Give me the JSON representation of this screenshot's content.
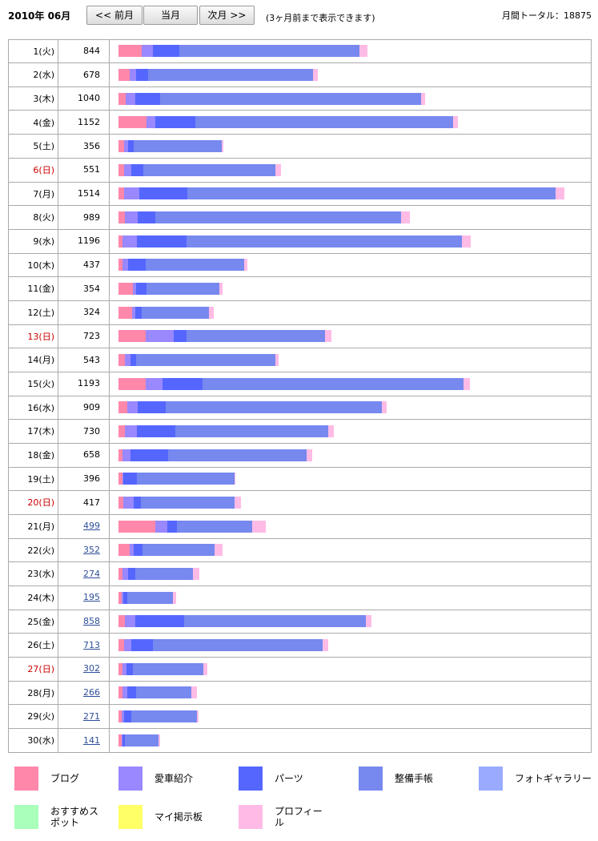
{
  "header": {
    "title": "2010年 06月",
    "buttons": [
      "<< 前月",
      "当月",
      "次月 >>"
    ],
    "note": "(3ヶ月前まで表示できます)",
    "total": "月間トータル：18875"
  },
  "chart_data": {
    "type": "bar",
    "categories": [
      "1(火)",
      "2(水)",
      "3(木)",
      "4(金)",
      "5(土)",
      "6(日)",
      "7(月)",
      "8(火)",
      "9(水)",
      "10(木)",
      "11(金)",
      "12(土)",
      "13(日)",
      "14(月)",
      "15(火)",
      "16(水)",
      "17(木)",
      "18(金)",
      "19(土)",
      "20(日)",
      "21(月)",
      "22(火)",
      "23(水)",
      "24(木)",
      "25(金)",
      "26(土)",
      "27(日)",
      "28(月)",
      "29(火)",
      "30(水)"
    ],
    "totals": [
      844,
      678,
      1040,
      1152,
      356,
      551,
      1514,
      989,
      1196,
      437,
      354,
      324,
      723,
      543,
      1193,
      909,
      730,
      658,
      396,
      417,
      499,
      352,
      274,
      195,
      858,
      713,
      302,
      266,
      271,
      141
    ],
    "series": [
      {
        "name": "ブログ",
        "color": "#ff88aa",
        "values": [
          79,
          38,
          24,
          95,
          19,
          19,
          19,
          22,
          14,
          14,
          49,
          46,
          93,
          22,
          93,
          30,
          22,
          14,
          14,
          16,
          125,
          38,
          14,
          11,
          22,
          19,
          14,
          14,
          11,
          11
        ]
      },
      {
        "name": "愛車紹介",
        "color": "#9988ff",
        "values": [
          38,
          22,
          33,
          30,
          14,
          24,
          52,
          44,
          49,
          19,
          11,
          11,
          95,
          19,
          57,
          35,
          41,
          27,
          3,
          35,
          41,
          14,
          19,
          5,
          35,
          24,
          14,
          16,
          8,
          3
        ]
      },
      {
        "name": "パーツ",
        "color": "#5566ff",
        "values": [
          90,
          41,
          84,
          136,
          19,
          41,
          163,
          60,
          169,
          60,
          35,
          22,
          44,
          19,
          136,
          95,
          131,
          128,
          46,
          24,
          33,
          30,
          24,
          14,
          166,
          73,
          22,
          30,
          24,
          8
        ]
      },
      {
        "name": "整備手帳",
        "color": "#7788ee",
        "values": [
          612,
          558,
          885,
          875,
          299,
          448,
          1250,
          833,
          934,
          333,
          248,
          229,
          469,
          472,
          885,
          735,
          517,
          470,
          330,
          318,
          254,
          243,
          195,
          154,
          616,
          578,
          238,
          187,
          223,
          114
        ]
      },
      {
        "name": "フォトギャラリー",
        "color": "#99aaff",
        "values": [
          0,
          0,
          0,
          0,
          0,
          0,
          0,
          0,
          0,
          0,
          0,
          0,
          0,
          0,
          0,
          0,
          0,
          0,
          0,
          0,
          0,
          0,
          0,
          0,
          0,
          0,
          0,
          0,
          0,
          0
        ]
      },
      {
        "name": "おすすめスポット",
        "color": "#aaffbb",
        "values": [
          0,
          0,
          0,
          0,
          0,
          0,
          0,
          0,
          0,
          0,
          0,
          0,
          0,
          0,
          0,
          0,
          0,
          0,
          0,
          0,
          0,
          0,
          0,
          0,
          0,
          0,
          0,
          0,
          0,
          0
        ]
      },
      {
        "name": "マイ掲示板",
        "color": "#ffff66",
        "values": [
          0,
          0,
          0,
          0,
          0,
          0,
          0,
          0,
          0,
          0,
          0,
          0,
          0,
          0,
          0,
          0,
          0,
          0,
          0,
          0,
          0,
          0,
          0,
          0,
          0,
          0,
          0,
          0,
          0,
          0
        ]
      },
      {
        "name": "プロフィール",
        "color": "#ffbbe6",
        "values": [
          25,
          19,
          14,
          16,
          5,
          19,
          30,
          30,
          30,
          11,
          11,
          16,
          22,
          11,
          22,
          14,
          19,
          19,
          3,
          24,
          46,
          27,
          22,
          11,
          19,
          19,
          14,
          19,
          5,
          5
        ]
      }
    ]
  }
}
